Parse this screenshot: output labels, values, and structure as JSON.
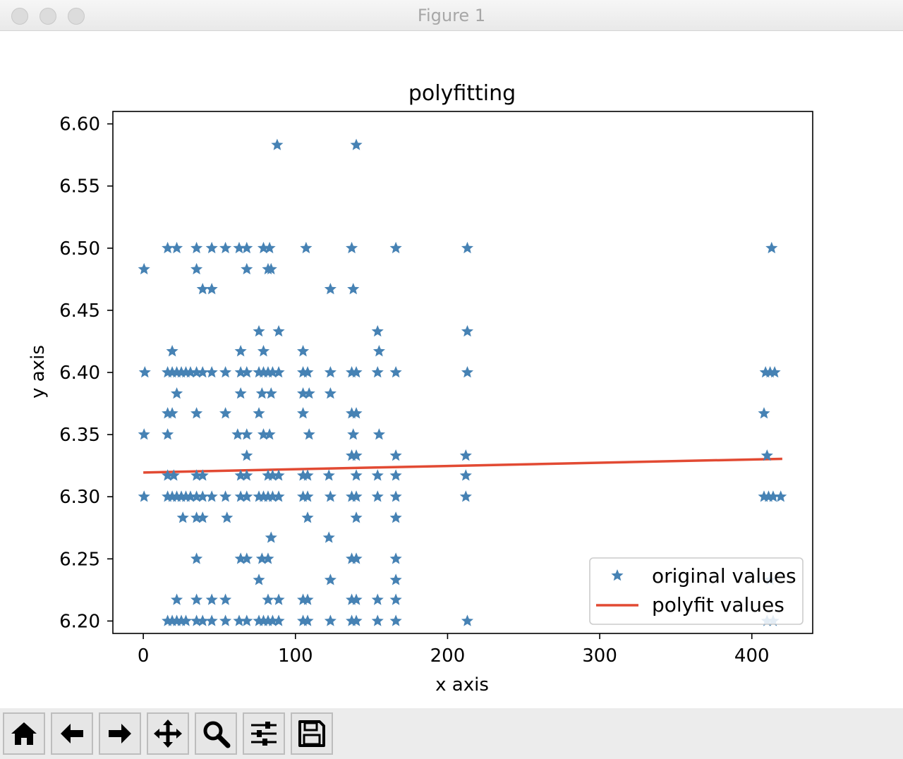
{
  "window": {
    "title": "Figure 1"
  },
  "toolbar": {
    "buttons": [
      {
        "icon": "home-icon"
      },
      {
        "icon": "back-arrow-icon"
      },
      {
        "icon": "forward-arrow-icon"
      },
      {
        "icon": "pan-move-icon"
      },
      {
        "icon": "zoom-magnifier-icon"
      },
      {
        "icon": "configure-subplots-icon"
      },
      {
        "icon": "save-floppy-icon"
      }
    ]
  },
  "chart_data": {
    "type": "scatter",
    "title": "polyfitting",
    "xlabel": "x axis",
    "ylabel": "y axis",
    "xlim": [
      -20,
      440
    ],
    "ylim": [
      6.19,
      6.61
    ],
    "xticks": [
      0,
      100,
      200,
      300,
      400
    ],
    "yticks": [
      6.2,
      6.25,
      6.3,
      6.35,
      6.4,
      6.45,
      6.5,
      6.55,
      6.6
    ],
    "xtick_labels": [
      "0",
      "100",
      "200",
      "300",
      "400"
    ],
    "ytick_labels": [
      "6.20",
      "6.25",
      "6.30",
      "6.35",
      "6.40",
      "6.45",
      "6.50",
      "6.55",
      "6.60"
    ],
    "grid": false,
    "legend_position": "bottom-right",
    "colors": {
      "original": "#4682b4",
      "polyfit": "#e24a33"
    },
    "series": [
      {
        "name": "original values",
        "style": "star-marker",
        "points": [
          [
            88,
            6.583
          ],
          [
            140,
            6.583
          ],
          [
            0.5,
            6.483
          ],
          [
            16,
            6.5
          ],
          [
            22,
            6.5
          ],
          [
            35,
            6.5
          ],
          [
            45,
            6.5
          ],
          [
            54,
            6.5
          ],
          [
            63,
            6.5
          ],
          [
            68,
            6.5
          ],
          [
            79,
            6.5
          ],
          [
            83,
            6.5
          ],
          [
            107,
            6.5
          ],
          [
            137,
            6.5
          ],
          [
            166,
            6.5
          ],
          [
            213,
            6.5
          ],
          [
            413,
            6.5
          ],
          [
            35,
            6.483
          ],
          [
            68,
            6.483
          ],
          [
            82,
            6.483
          ],
          [
            84,
            6.483
          ],
          [
            39,
            6.467
          ],
          [
            45,
            6.467
          ],
          [
            123,
            6.467
          ],
          [
            138,
            6.467
          ],
          [
            76,
            6.433
          ],
          [
            89,
            6.433
          ],
          [
            154,
            6.433
          ],
          [
            213,
            6.433
          ],
          [
            19,
            6.417
          ],
          [
            64,
            6.417
          ],
          [
            79,
            6.417
          ],
          [
            105,
            6.417
          ],
          [
            155,
            6.417
          ],
          [
            1,
            6.4
          ],
          [
            16,
            6.4
          ],
          [
            19,
            6.4
          ],
          [
            22,
            6.4
          ],
          [
            25,
            6.4
          ],
          [
            28,
            6.4
          ],
          [
            31,
            6.4
          ],
          [
            35,
            6.4
          ],
          [
            39,
            6.4
          ],
          [
            45,
            6.4
          ],
          [
            54,
            6.4
          ],
          [
            64,
            6.4
          ],
          [
            68,
            6.4
          ],
          [
            76,
            6.4
          ],
          [
            79,
            6.4
          ],
          [
            82,
            6.4
          ],
          [
            85,
            6.4
          ],
          [
            89,
            6.4
          ],
          [
            105,
            6.4
          ],
          [
            108,
            6.4
          ],
          [
            123,
            6.4
          ],
          [
            137,
            6.4
          ],
          [
            140,
            6.4
          ],
          [
            154,
            6.4
          ],
          [
            166,
            6.4
          ],
          [
            213,
            6.4
          ],
          [
            409,
            6.4
          ],
          [
            412,
            6.4
          ],
          [
            415,
            6.4
          ],
          [
            22,
            6.383
          ],
          [
            64,
            6.383
          ],
          [
            78,
            6.383
          ],
          [
            84,
            6.383
          ],
          [
            105,
            6.383
          ],
          [
            109,
            6.383
          ],
          [
            123,
            6.383
          ],
          [
            16,
            6.367
          ],
          [
            19,
            6.367
          ],
          [
            35,
            6.367
          ],
          [
            54,
            6.367
          ],
          [
            76,
            6.367
          ],
          [
            105,
            6.367
          ],
          [
            137,
            6.367
          ],
          [
            140,
            6.367
          ],
          [
            408,
            6.367
          ],
          [
            0.5,
            6.35
          ],
          [
            16,
            6.35
          ],
          [
            62,
            6.35
          ],
          [
            68,
            6.35
          ],
          [
            79,
            6.35
          ],
          [
            83,
            6.35
          ],
          [
            109,
            6.35
          ],
          [
            138,
            6.35
          ],
          [
            155,
            6.35
          ],
          [
            68,
            6.333
          ],
          [
            137,
            6.333
          ],
          [
            140,
            6.333
          ],
          [
            166,
            6.333
          ],
          [
            212,
            6.333
          ],
          [
            410,
            6.333
          ],
          [
            16,
            6.317
          ],
          [
            20,
            6.317
          ],
          [
            35,
            6.317
          ],
          [
            39,
            6.317
          ],
          [
            64,
            6.317
          ],
          [
            68,
            6.317
          ],
          [
            82,
            6.317
          ],
          [
            85,
            6.317
          ],
          [
            89,
            6.317
          ],
          [
            105,
            6.317
          ],
          [
            108,
            6.317
          ],
          [
            122,
            6.317
          ],
          [
            140,
            6.317
          ],
          [
            154,
            6.317
          ],
          [
            166,
            6.317
          ],
          [
            212,
            6.317
          ],
          [
            0.5,
            6.3
          ],
          [
            16,
            6.3
          ],
          [
            19,
            6.3
          ],
          [
            22,
            6.3
          ],
          [
            25,
            6.3
          ],
          [
            28,
            6.3
          ],
          [
            31,
            6.3
          ],
          [
            35,
            6.3
          ],
          [
            39,
            6.3
          ],
          [
            45,
            6.3
          ],
          [
            54,
            6.3
          ],
          [
            64,
            6.3
          ],
          [
            68,
            6.3
          ],
          [
            76,
            6.3
          ],
          [
            79,
            6.3
          ],
          [
            82,
            6.3
          ],
          [
            85,
            6.3
          ],
          [
            89,
            6.3
          ],
          [
            105,
            6.3
          ],
          [
            108,
            6.3
          ],
          [
            123,
            6.3
          ],
          [
            137,
            6.3
          ],
          [
            140,
            6.3
          ],
          [
            154,
            6.3
          ],
          [
            166,
            6.3
          ],
          [
            212,
            6.3
          ],
          [
            408,
            6.3
          ],
          [
            411,
            6.3
          ],
          [
            414,
            6.3
          ],
          [
            419,
            6.3
          ],
          [
            26,
            6.283
          ],
          [
            35,
            6.283
          ],
          [
            39,
            6.283
          ],
          [
            55,
            6.283
          ],
          [
            108,
            6.283
          ],
          [
            140,
            6.283
          ],
          [
            166,
            6.283
          ],
          [
            84,
            6.267
          ],
          [
            122,
            6.267
          ],
          [
            35,
            6.25
          ],
          [
            64,
            6.25
          ],
          [
            68,
            6.25
          ],
          [
            78,
            6.25
          ],
          [
            82,
            6.25
          ],
          [
            137,
            6.25
          ],
          [
            140,
            6.25
          ],
          [
            166,
            6.25
          ],
          [
            76,
            6.233
          ],
          [
            123,
            6.233
          ],
          [
            166,
            6.233
          ],
          [
            412,
            6.233
          ],
          [
            22,
            6.217
          ],
          [
            35,
            6.217
          ],
          [
            45,
            6.217
          ],
          [
            54,
            6.217
          ],
          [
            82,
            6.217
          ],
          [
            89,
            6.217
          ],
          [
            105,
            6.217
          ],
          [
            108,
            6.217
          ],
          [
            137,
            6.217
          ],
          [
            140,
            6.217
          ],
          [
            154,
            6.217
          ],
          [
            166,
            6.217
          ],
          [
            16,
            6.2
          ],
          [
            19,
            6.2
          ],
          [
            22,
            6.2
          ],
          [
            25,
            6.2
          ],
          [
            28,
            6.2
          ],
          [
            35,
            6.2
          ],
          [
            39,
            6.2
          ],
          [
            45,
            6.2
          ],
          [
            54,
            6.2
          ],
          [
            63,
            6.2
          ],
          [
            68,
            6.2
          ],
          [
            76,
            6.2
          ],
          [
            79,
            6.2
          ],
          [
            82,
            6.2
          ],
          [
            85,
            6.2
          ],
          [
            89,
            6.2
          ],
          [
            105,
            6.2
          ],
          [
            108,
            6.2
          ],
          [
            123,
            6.2
          ],
          [
            137,
            6.2
          ],
          [
            140,
            6.2
          ],
          [
            154,
            6.2
          ],
          [
            166,
            6.2
          ],
          [
            213,
            6.2
          ],
          [
            410,
            6.2
          ],
          [
            414,
            6.2
          ]
        ]
      },
      {
        "name": "polyfit values",
        "style": "line",
        "x": [
          0,
          420
        ],
        "y": [
          6.3195,
          6.3305
        ]
      }
    ]
  }
}
